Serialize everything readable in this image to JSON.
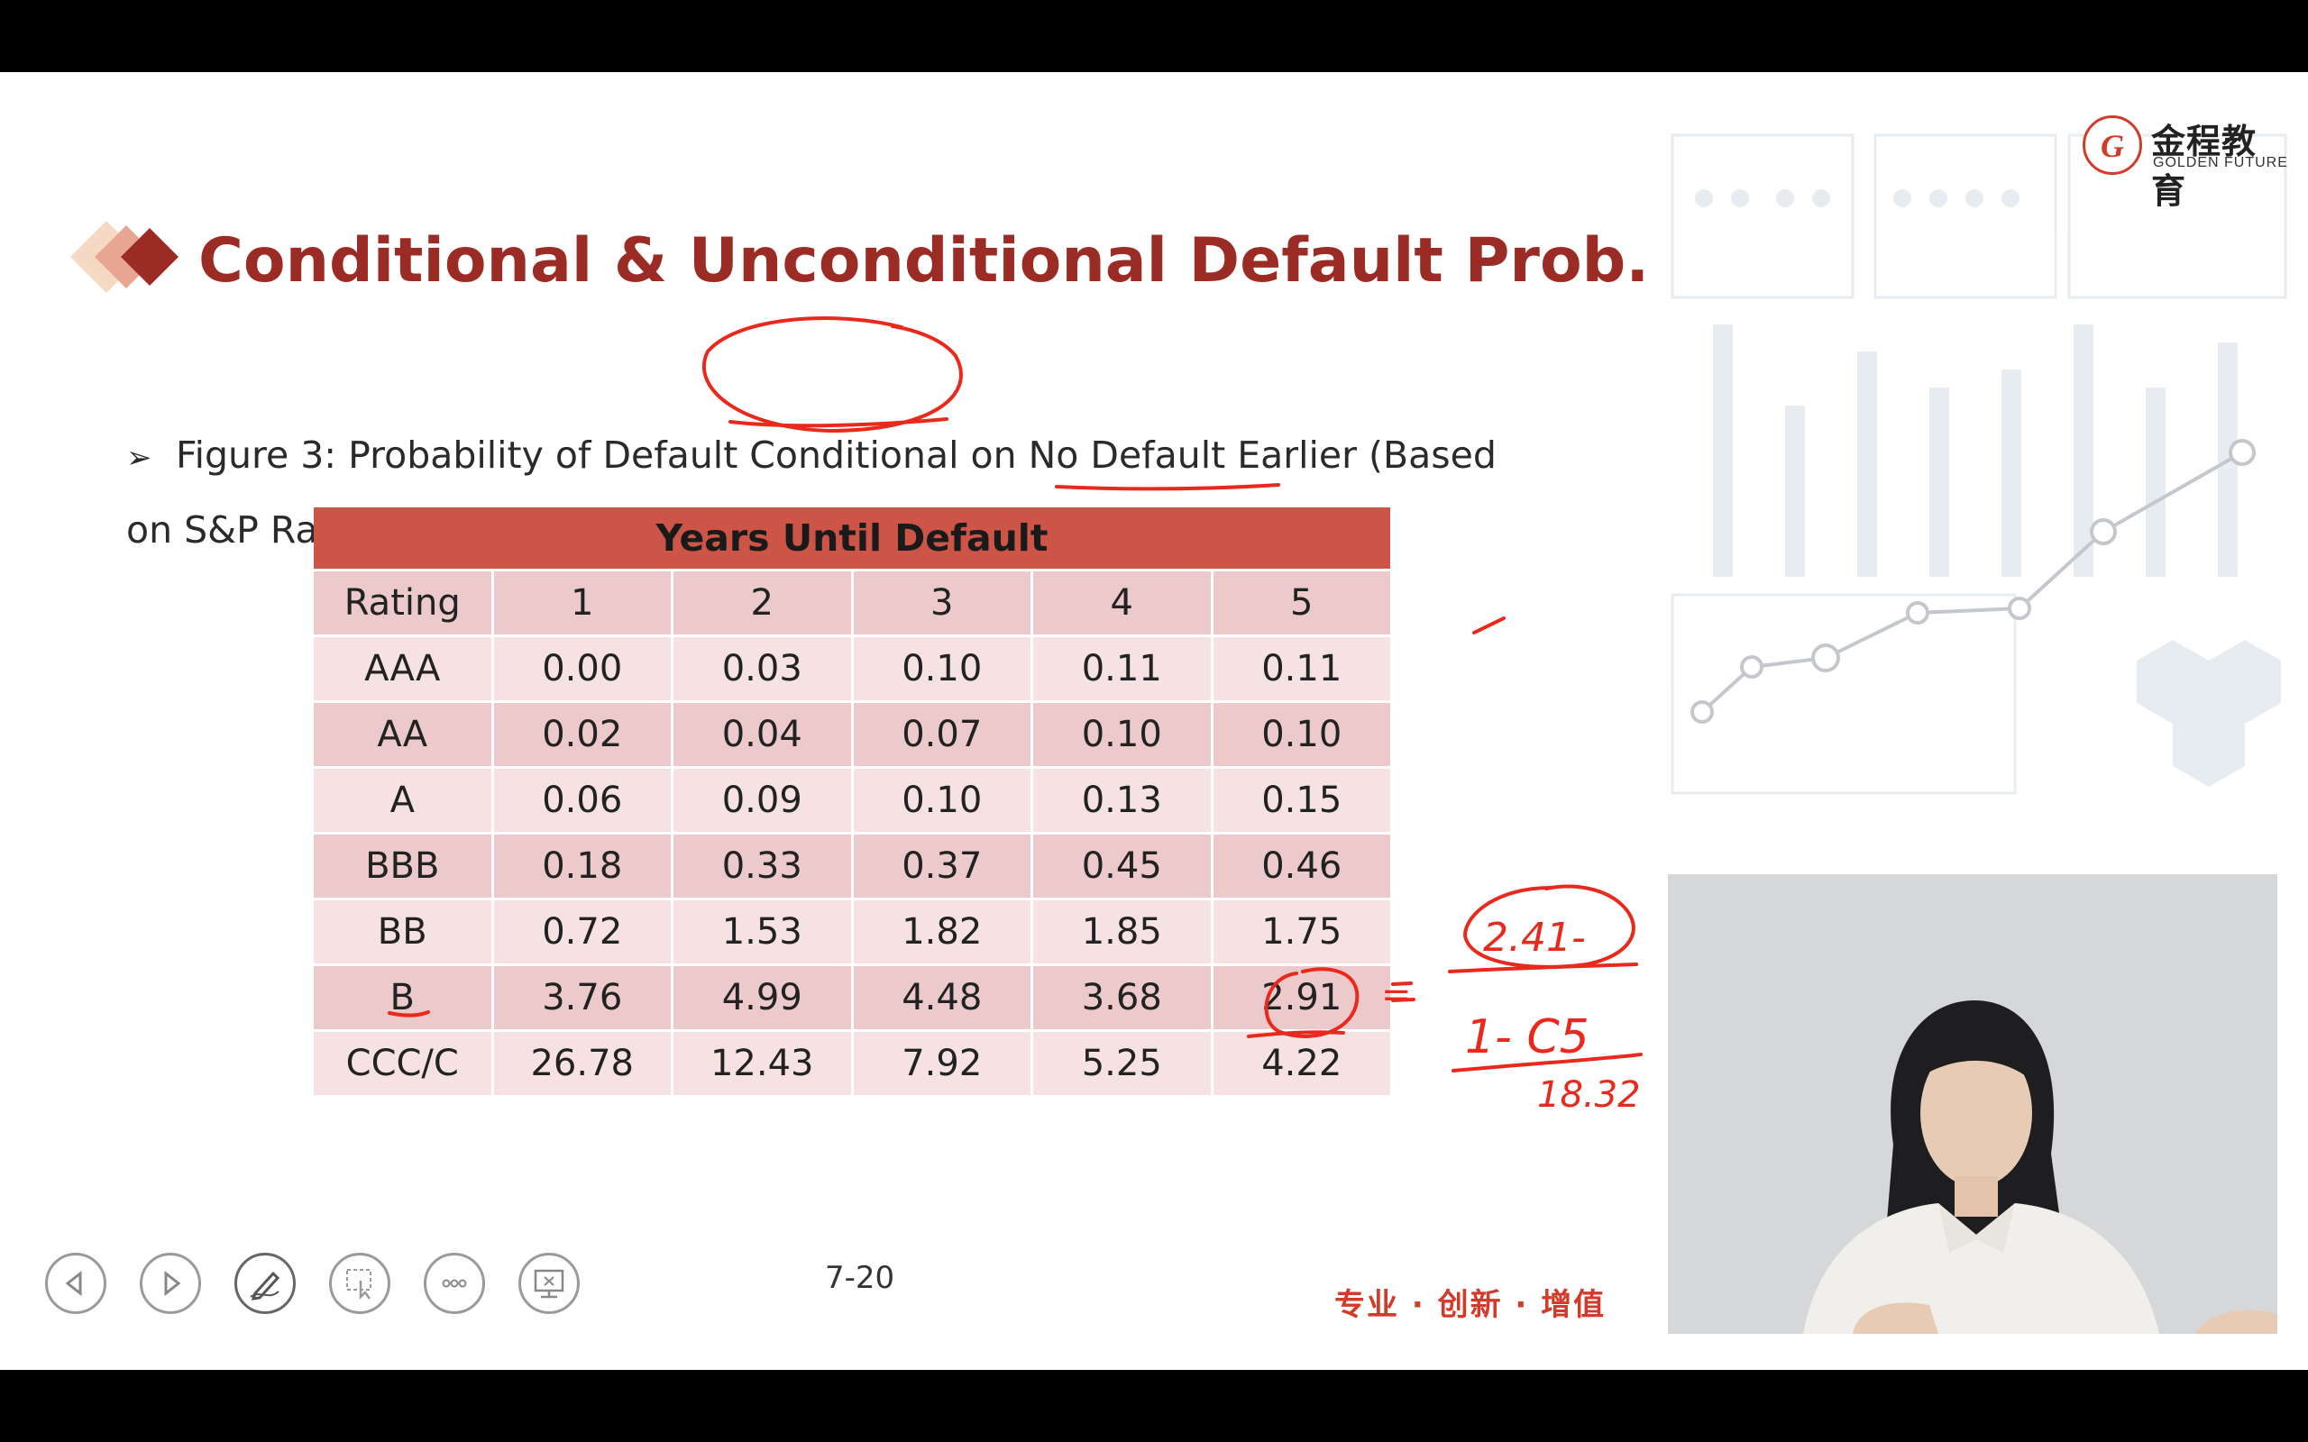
{
  "brand": {
    "logo_cn": "金程教育",
    "logo_en": "GOLDEN FUTURE",
    "logo_mark": "G",
    "slogan": "专业 · 创新 · 增值",
    "accent_color": "#d23a2a",
    "title_color": "#9b2c25"
  },
  "slide": {
    "title": "Conditional & Unconditional Default Prob.",
    "subtitle": "Figure 3: Probability of Default Conditional on No Default Earlier (Based on S&P Ratings)",
    "page": "7-20"
  },
  "table": {
    "header": "Years Until Default",
    "columns": [
      "Rating",
      "1",
      "2",
      "3",
      "4",
      "5"
    ],
    "rows": [
      [
        "AAA",
        "0.00",
        "0.03",
        "0.10",
        "0.11",
        "0.11"
      ],
      [
        "AA",
        "0.02",
        "0.04",
        "0.07",
        "0.10",
        "0.10"
      ],
      [
        "A",
        "0.06",
        "0.09",
        "0.10",
        "0.13",
        "0.15"
      ],
      [
        "BBB",
        "0.18",
        "0.33",
        "0.37",
        "0.45",
        "0.46"
      ],
      [
        "BB",
        "0.72",
        "1.53",
        "1.82",
        "1.85",
        "1.75"
      ],
      [
        "B",
        "3.76",
        "4.99",
        "4.48",
        "3.68",
        "2.91"
      ],
      [
        "CCC/C",
        "26.78",
        "12.43",
        "7.92",
        "5.25",
        "4.22"
      ]
    ]
  },
  "annotations": {
    "eq": "=",
    "numerator": "2.41-",
    "denominator": "1- C5",
    "under": "18.32"
  },
  "controls": {
    "prev": "previous",
    "next": "next",
    "pen": "pen",
    "pointer": "pointer",
    "more": "more",
    "screen": "screen"
  }
}
